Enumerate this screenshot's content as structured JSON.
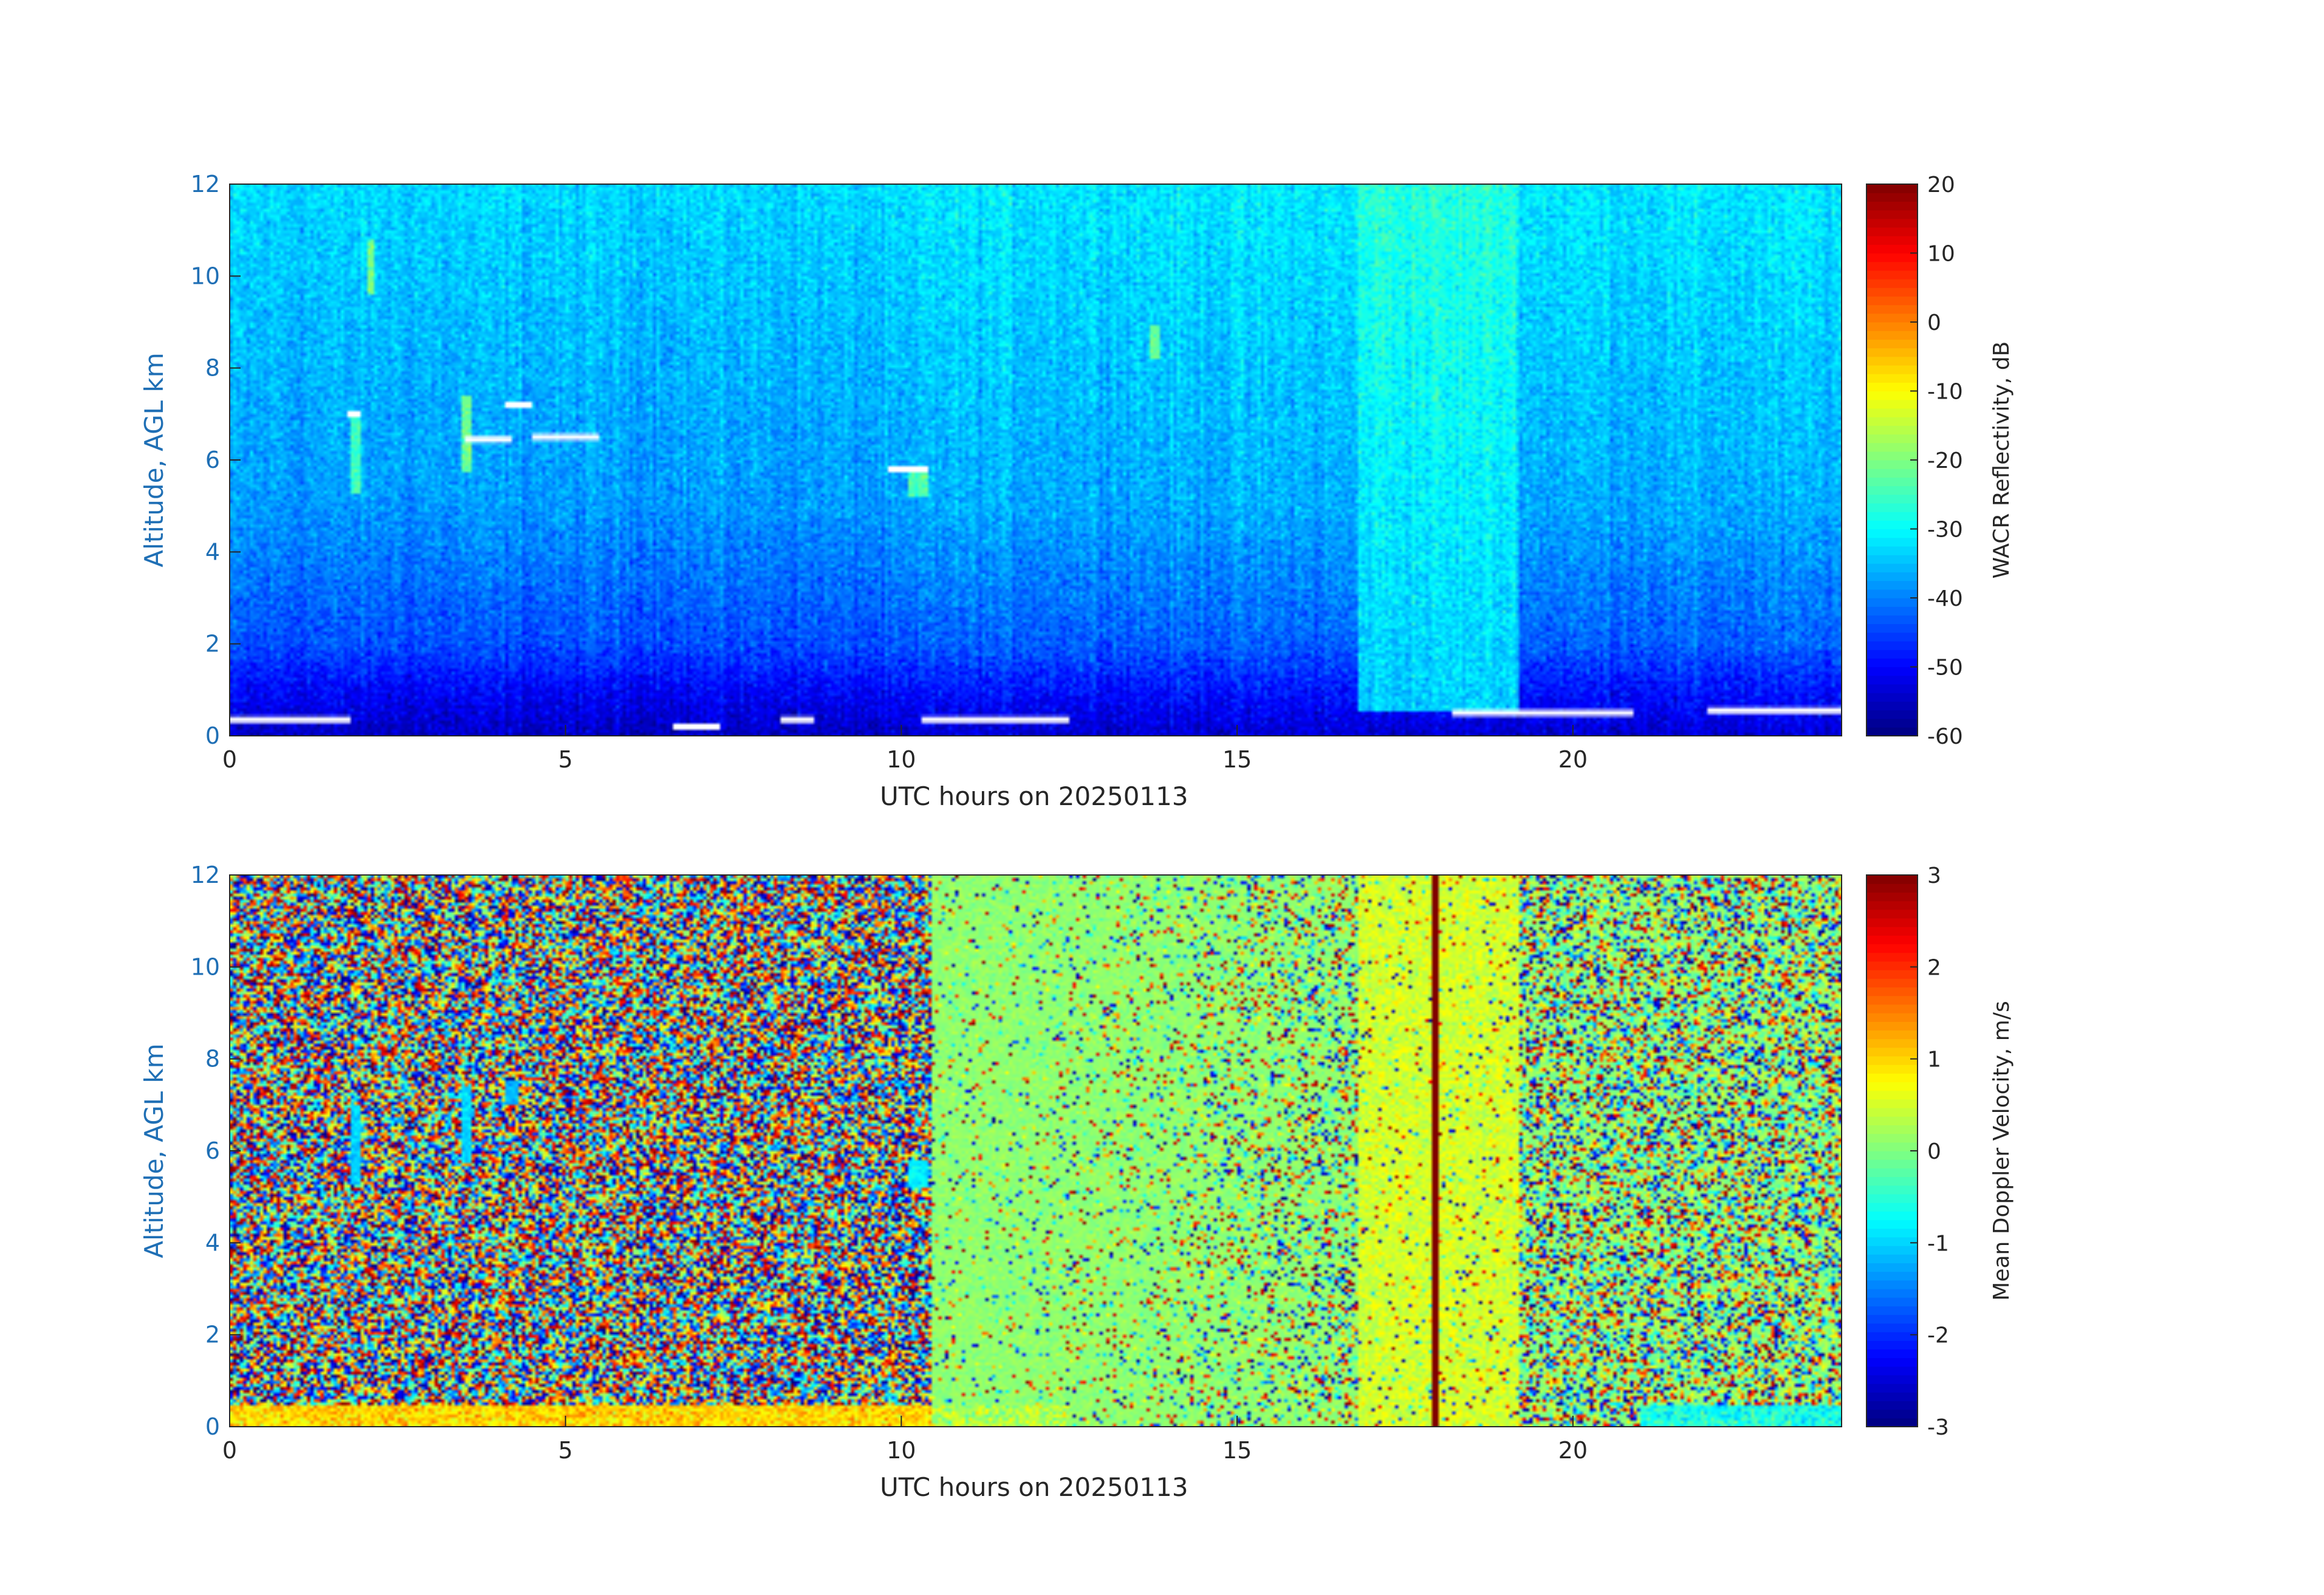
{
  "chart_data": [
    {
      "type": "heatmap",
      "title": "",
      "xlabel": "UTC hours on 20250113",
      "ylabel": "Altitude, AGL km",
      "xlim": [
        0,
        24
      ],
      "ylim": [
        0,
        12
      ],
      "xticks": [
        0,
        5,
        10,
        15,
        20
      ],
      "xtick_labels": [
        "0",
        "5",
        "10",
        "15",
        "20"
      ],
      "yticks": [
        0,
        2,
        4,
        6,
        8,
        10,
        12
      ],
      "ytick_labels": [
        "0",
        "2",
        "4",
        "6",
        "8",
        "10",
        "12"
      ],
      "colormap": "jet",
      "colorbar": {
        "label": "WACR Reflectivity, dB",
        "min": -60,
        "max": 20,
        "ticks": [
          -60,
          -50,
          -40,
          -30,
          -20,
          -10,
          0,
          10,
          20
        ],
        "tick_labels": [
          "-60",
          "-50",
          "-40",
          "-30",
          "-20",
          "-10",
          "0",
          "10",
          "20"
        ]
      },
      "grid": false,
      "field": {
        "description_values_dB": {
          "near_surface_0_to_1km": -55,
          "2km": -44,
          "5km": -38,
          "12km": -33
        },
        "enhanced_band_hours": [
          16.8,
          19.2
        ],
        "enhanced_band_value_dB": -24,
        "missing_data_white_segments": [
          {
            "x_start": 0.0,
            "x_end": 1.8,
            "altitude_km": 0.35
          },
          {
            "x_start": 6.6,
            "x_end": 7.3,
            "altitude_km": 0.2
          },
          {
            "x_start": 8.2,
            "x_end": 8.7,
            "altitude_km": 0.35
          },
          {
            "x_start": 10.3,
            "x_end": 12.5,
            "altitude_km": 0.35
          },
          {
            "x_start": 18.2,
            "x_end": 20.9,
            "altitude_km": 0.5
          },
          {
            "x_start": 22.0,
            "x_end": 24.0,
            "altitude_km": 0.55
          },
          {
            "x_start": 9.8,
            "x_end": 10.4,
            "altitude_km": 5.8
          },
          {
            "x_start": 1.75,
            "x_end": 1.95,
            "altitude_km": 7.0
          },
          {
            "x_start": 3.5,
            "x_end": 4.2,
            "altitude_km": 6.45
          },
          {
            "x_start": 4.1,
            "x_end": 4.5,
            "altitude_km": 7.2
          },
          {
            "x_start": 4.5,
            "x_end": 5.5,
            "altitude_km": 6.5
          }
        ],
        "cloud_features": [
          {
            "x_start": 1.78,
            "x_end": 1.95,
            "y_min_km": 5.3,
            "y_max_km": 7.0,
            "value_dB": -25
          },
          {
            "x_start": 3.45,
            "x_end": 3.6,
            "y_min_km": 5.7,
            "y_max_km": 7.4,
            "value_dB": -22
          },
          {
            "x_start": 2.05,
            "x_end": 2.15,
            "y_min_km": 9.6,
            "y_max_km": 10.8,
            "value_dB": -20
          },
          {
            "x_start": 10.1,
            "x_end": 10.4,
            "y_min_km": 5.2,
            "y_max_km": 5.8,
            "value_dB": -24
          },
          {
            "x_start": 13.7,
            "x_end": 13.85,
            "y_min_km": 8.2,
            "y_max_km": 8.9,
            "value_dB": -22
          }
        ]
      }
    },
    {
      "type": "heatmap",
      "title": "",
      "xlabel": "UTC hours on 20250113",
      "ylabel": "Altitude, AGL km",
      "xlim": [
        0,
        24
      ],
      "ylim": [
        0,
        12
      ],
      "xticks": [
        0,
        5,
        10,
        15,
        20
      ],
      "xtick_labels": [
        "0",
        "5",
        "10",
        "15",
        "20"
      ],
      "yticks": [
        0,
        2,
        4,
        6,
        8,
        10,
        12
      ],
      "ytick_labels": [
        "0",
        "2",
        "4",
        "6",
        "8",
        "10",
        "12"
      ],
      "colormap": "jet",
      "colorbar": {
        "label": "Mean Doppler Velocity, m/s",
        "min": -3,
        "max": 3,
        "ticks": [
          -3,
          -2,
          -1,
          0,
          1,
          2,
          3
        ],
        "tick_labels": [
          "-3",
          "-2",
          "-1",
          "0",
          "1",
          "2",
          "3"
        ]
      },
      "grid": false,
      "field": {
        "regions": [
          {
            "x_start": 0.0,
            "x_end": 10.45,
            "pattern": "random noise spanning full range -3 to 3"
          },
          {
            "x_start": 10.45,
            "x_end": 16.8,
            "pattern": "mostly near 0.1 with sparse noise increasing toward 16.8"
          },
          {
            "x_start": 16.8,
            "x_end": 19.2,
            "pattern": "near 0.5 with moderate noise"
          },
          {
            "x_start": 19.2,
            "x_end": 24.0,
            "pattern": "mixed noise, more near-zero values than early hours"
          }
        ],
        "near_surface_band_km": [
          0.0,
          0.45
        ],
        "near_surface_value_ms": 1.0,
        "cloud_features": [
          {
            "x_start": 1.78,
            "x_end": 1.95,
            "y_min_km": 5.3,
            "y_max_km": 7.0,
            "value_ms": -1.0
          },
          {
            "x_start": 3.45,
            "x_end": 3.6,
            "y_min_km": 5.7,
            "y_max_km": 7.4,
            "value_ms": -1.0
          },
          {
            "x_start": 4.1,
            "x_end": 4.3,
            "y_min_km": 7.0,
            "y_max_km": 7.5,
            "value_ms": -1.2
          },
          {
            "x_start": 10.1,
            "x_end": 10.4,
            "y_min_km": 5.2,
            "y_max_km": 5.8,
            "value_ms": -0.8
          }
        ]
      }
    }
  ]
}
